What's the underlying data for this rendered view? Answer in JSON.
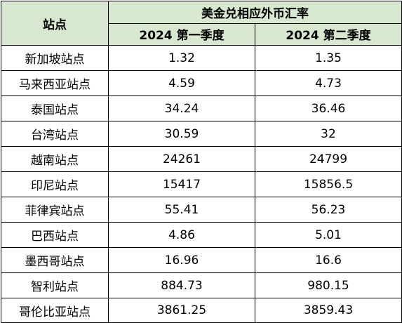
{
  "table": {
    "header_station": "站点",
    "header_group": "美金兑相应外币汇率",
    "col_q1": "2024 第一季度",
    "col_q2": "2024 第二季度",
    "rows": [
      {
        "station": "新加坡站点",
        "q1": "1.32",
        "q2": "1.35"
      },
      {
        "station": "马来西亚站点",
        "q1": "4.59",
        "q2": "4.73"
      },
      {
        "station": "泰国站点",
        "q1": "34.24",
        "q2": "36.46"
      },
      {
        "station": "台湾站点",
        "q1": "30.59",
        "q2": "32"
      },
      {
        "station": "越南站点",
        "q1": "24261",
        "q2": "24799"
      },
      {
        "station": "印尼站点",
        "q1": "15417",
        "q2": "15856.5"
      },
      {
        "station": "菲律宾站点",
        "q1": "55.41",
        "q2": "56.23"
      },
      {
        "station": "巴西站点",
        "q1": "4.86",
        "q2": "5.01"
      },
      {
        "station": "墨西哥站点",
        "q1": "16.96",
        "q2": "16.6"
      },
      {
        "station": "智利站点",
        "q1": "884.73",
        "q2": "980.15"
      },
      {
        "station": "哥伦比亚站点",
        "q1": "3861.25",
        "q2": "3859.43"
      }
    ]
  }
}
